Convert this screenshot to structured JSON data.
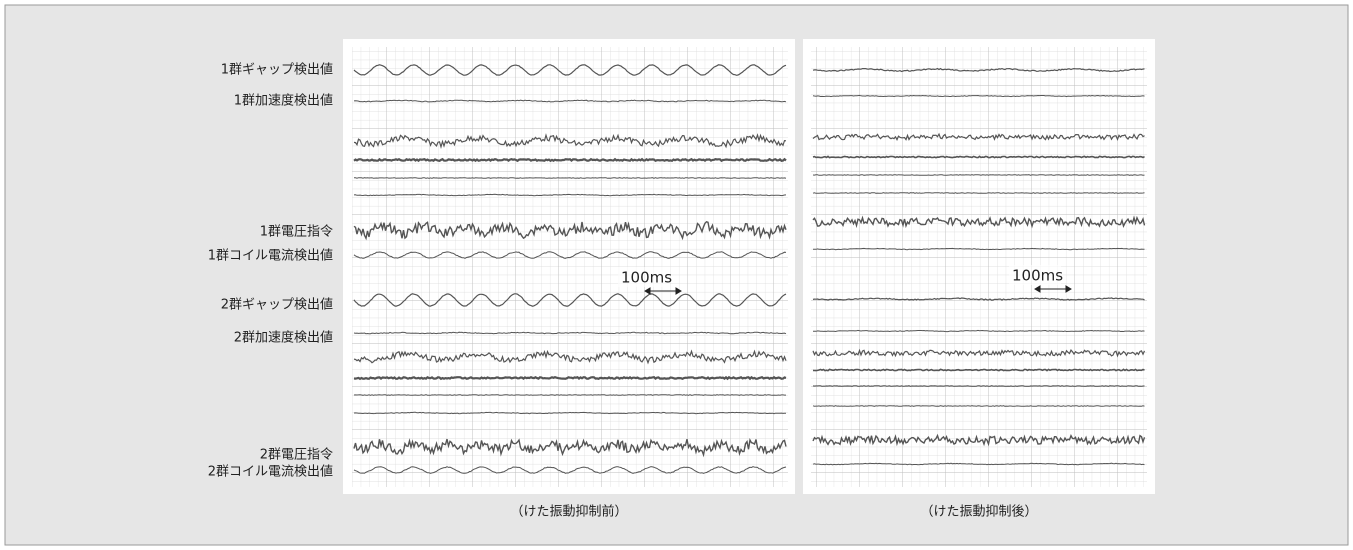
{
  "left_labels": [
    "1群ギャップ検出値",
    "1群加速度検出値",
    "1群電圧指令",
    "1群コイル電流検出値",
    "2群ギャップ検出値",
    "2群加速度検出値",
    "2群電圧指令",
    "2群コイル電流検出値"
  ],
  "panels": [
    {
      "scale_label": "100ms",
      "caption": "（けた振動抑制前）"
    },
    {
      "scale_label": "100ms",
      "caption": "（けた振動抑制後）"
    }
  ]
}
